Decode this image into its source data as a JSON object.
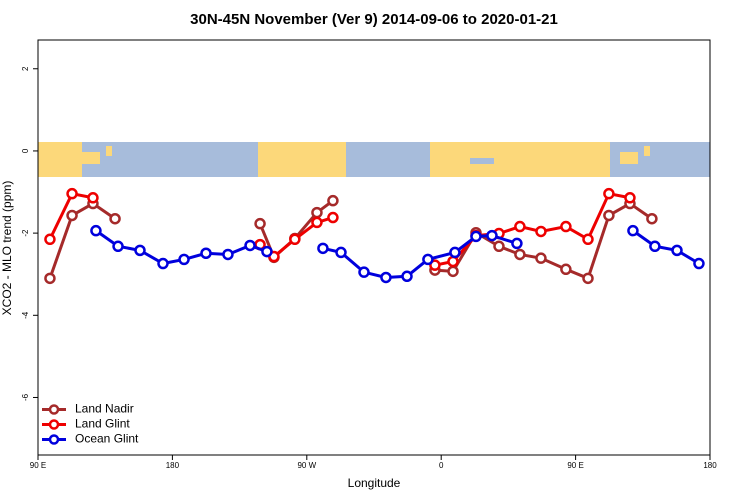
{
  "chart_data": {
    "type": "line",
    "title": "30N-45N November (Ver 9)   2014-09-06 to 2020-01-21",
    "x_label": "Longitude",
    "y_label": "XCO2 - MLO trend (ppm)",
    "xlim": [
      90,
      540
    ],
    "xticks": [
      {
        "value": 90,
        "label": "90 E"
      },
      {
        "value": 180,
        "label": "180"
      },
      {
        "value": 270,
        "label": "90 W"
      },
      {
        "value": 360,
        "label": "0"
      },
      {
        "value": 450,
        "label": "90 E"
      },
      {
        "value": 540,
        "label": "180"
      }
    ],
    "ylim": [
      -7.4,
      2.7
    ],
    "yticks": [
      2,
      0,
      -2,
      -4,
      -6
    ],
    "legend": "bottomleft",
    "series": [
      {
        "name": "Land Nadir",
        "color": "#a52a2a",
        "x": [
          98,
          112.8,
          126.8,
          141.6,
          null,
          238.7,
          248,
          262,
          276.8,
          287.5,
          null,
          355.8,
          367.9,
          383.3,
          398.7,
          412.7,
          426.8,
          443.5,
          458.3,
          472.3,
          486.4,
          501.1
        ],
        "values": [
          -3.1,
          -1.57,
          -1.28,
          -1.65,
          null,
          -1.77,
          -2.59,
          -2.13,
          -1.5,
          -1.21,
          null,
          -2.9,
          -2.93,
          -1.99,
          -2.32,
          -2.52,
          -2.61,
          -2.88,
          -3.1,
          -1.57,
          -1.28,
          -1.65
        ]
      },
      {
        "name": "Land Glint",
        "color": "#ee0000",
        "x": [
          98,
          112.8,
          126.8,
          null,
          238.7,
          248,
          262,
          276.8,
          287.5,
          null,
          355.8,
          367.9,
          383.3,
          398.7,
          412.7,
          426.8,
          443.5,
          458.3,
          472.3,
          486.4
        ],
        "values": [
          -2.15,
          -1.04,
          -1.14,
          null,
          -2.28,
          -2.57,
          -2.15,
          -1.74,
          -1.62,
          null,
          -2.78,
          -2.69,
          -2.06,
          -2.01,
          -1.84,
          -1.96,
          -1.84,
          -2.15,
          -1.04,
          -1.14
        ]
      },
      {
        "name": "Ocean Glint",
        "color": "#0000dd",
        "x": [
          128.8,
          143.6,
          158.3,
          173.7,
          187.8,
          202.5,
          217.2,
          232,
          243.3,
          null,
          280.8,
          292.9,
          308.3,
          323,
          337.1,
          351.1,
          369.2,
          383.3,
          394,
          410.7,
          null,
          488.4,
          503.1,
          517.9,
          532.6
        ],
        "values": [
          -1.94,
          -2.32,
          -2.42,
          -2.74,
          -2.64,
          -2.49,
          -2.52,
          -2.3,
          -2.45,
          null,
          -2.37,
          -2.47,
          -2.95,
          -3.08,
          -3.05,
          -2.64,
          -2.47,
          -2.08,
          -2.06,
          -2.25,
          null,
          -1.94,
          -2.32,
          -2.42,
          -2.74
        ]
      }
    ]
  }
}
